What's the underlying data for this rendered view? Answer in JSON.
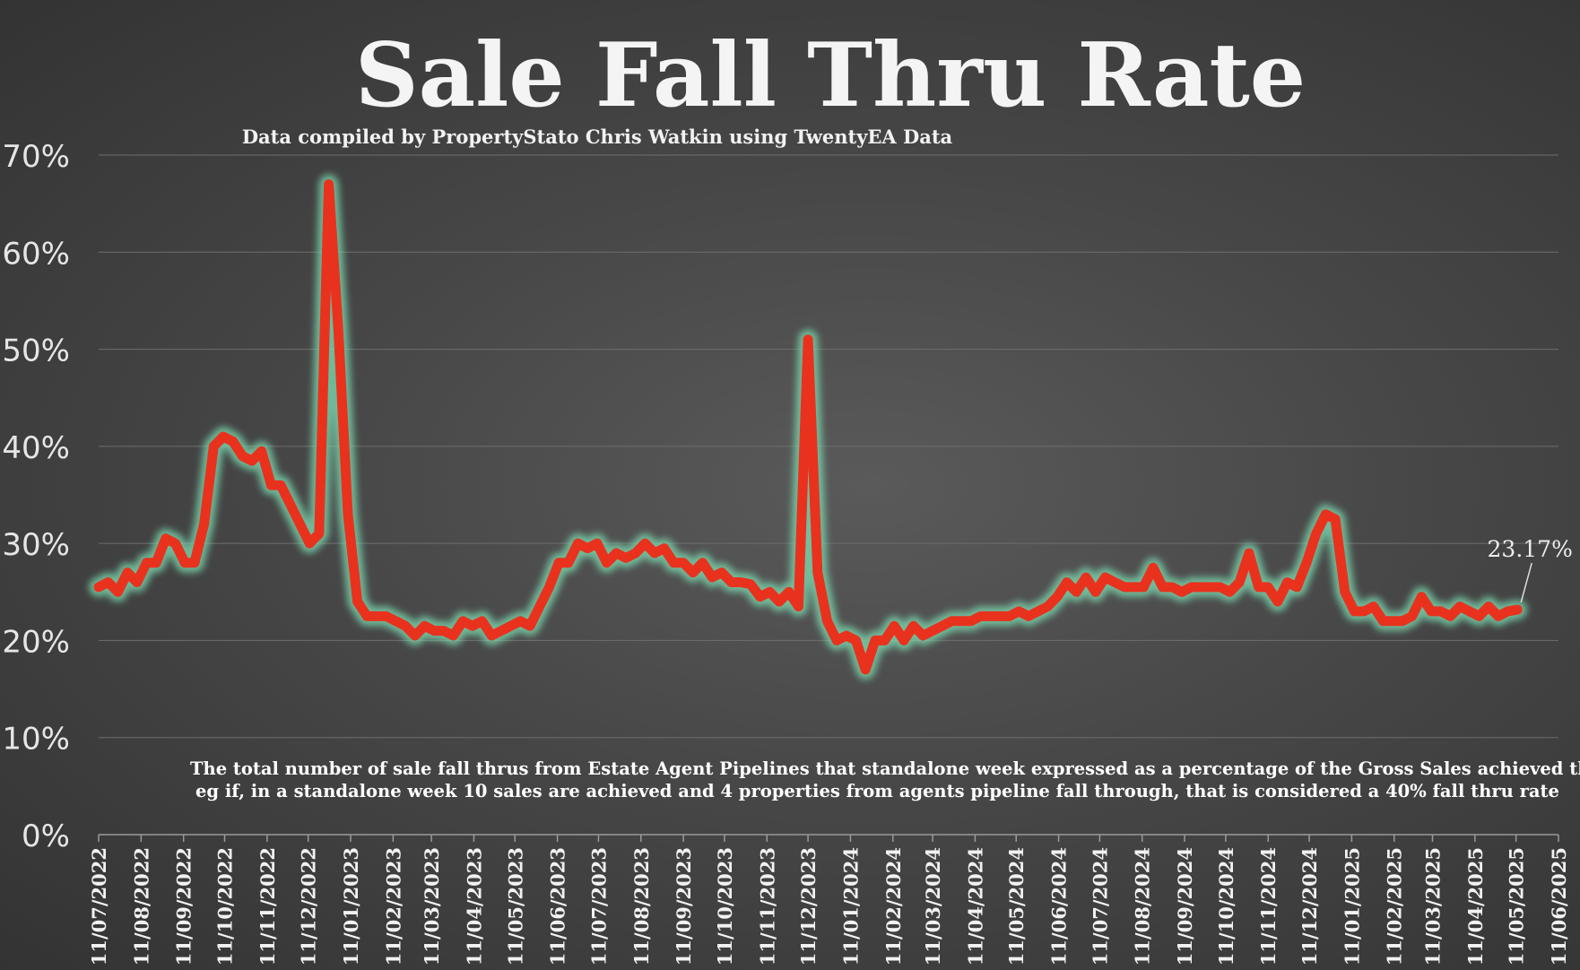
{
  "chart_data": {
    "type": "line",
    "title": "Sale Fall Thru Rate",
    "subtitle": "Data compiled by PropertyStato Chris Watkin using TwentyEA Data",
    "note_line1": "The total number of sale fall thrus from Estate Agent Pipelines that standalone week expressed as a percentage of the Gross Sales achieved that week.",
    "note_line2": "eg if, in a standalone week 10 sales are achieved and 4 properties from agents pipeline fall through, that is considered a 40%  fall thru rate",
    "xlabel": "",
    "ylabel": "",
    "y_unit": "%",
    "ylim": [
      0,
      70
    ],
    "y_ticks": [
      "0%",
      "10%",
      "20%",
      "30%",
      "40%",
      "50%",
      "60%",
      "70%"
    ],
    "y_tick_values": [
      0,
      10,
      20,
      30,
      40,
      50,
      60,
      70
    ],
    "x_range": [
      "2022-07-11",
      "2025-06-11"
    ],
    "x_ticks": [
      "11/07/2022",
      "11/08/2022",
      "11/09/2022",
      "11/10/2022",
      "11/11/2022",
      "11/12/2022",
      "11/01/2023",
      "11/02/2023",
      "11/03/2023",
      "11/04/2023",
      "11/05/2023",
      "11/06/2023",
      "11/07/2023",
      "11/08/2023",
      "11/09/2023",
      "11/10/2023",
      "11/11/2023",
      "11/12/2023",
      "11/01/2024",
      "11/02/2024",
      "11/03/2024",
      "11/04/2024",
      "11/05/2024",
      "11/06/2024",
      "11/07/2024",
      "11/08/2024",
      "11/09/2024",
      "11/10/2024",
      "11/11/2024",
      "11/12/2024",
      "11/01/2025",
      "11/02/2025",
      "11/03/2025",
      "11/04/2025",
      "11/05/2025",
      "11/06/2025"
    ],
    "grid": true,
    "legend": "none",
    "line_color": "#e8321e",
    "glow_color": "#7ee0b4",
    "last_value_label": "23.17%",
    "series": [
      {
        "x": [
          "2022-07-11",
          "2022-07-18",
          "2022-07-25",
          "2022-08-01",
          "2022-08-08",
          "2022-08-15",
          "2022-08-22",
          "2022-08-29",
          "2022-09-05",
          "2022-09-12",
          "2022-09-19",
          "2022-09-26",
          "2022-10-03",
          "2022-10-10",
          "2022-10-17",
          "2022-10-24",
          "2022-10-31",
          "2022-11-07",
          "2022-11-14",
          "2022-11-21",
          "2022-11-28",
          "2022-12-05",
          "2022-12-12",
          "2022-12-19",
          "2022-12-26",
          "2023-01-02",
          "2023-01-09",
          "2023-01-16",
          "2023-01-23",
          "2023-01-30",
          "2023-02-06",
          "2023-02-13",
          "2023-02-20",
          "2023-02-27",
          "2023-03-06",
          "2023-03-13",
          "2023-03-20",
          "2023-03-27",
          "2023-04-03",
          "2023-04-10",
          "2023-04-17",
          "2023-04-24",
          "2023-05-01",
          "2023-05-08",
          "2023-05-15",
          "2023-05-22",
          "2023-05-29",
          "2023-06-05",
          "2023-06-12",
          "2023-06-19",
          "2023-06-26",
          "2023-07-03",
          "2023-07-10",
          "2023-07-17",
          "2023-07-24",
          "2023-07-31",
          "2023-08-07",
          "2023-08-14",
          "2023-08-21",
          "2023-08-28",
          "2023-09-04",
          "2023-09-11",
          "2023-09-18",
          "2023-09-25",
          "2023-10-02",
          "2023-10-09",
          "2023-10-16",
          "2023-10-23",
          "2023-10-30",
          "2023-11-06",
          "2023-11-13",
          "2023-11-20",
          "2023-11-27",
          "2023-12-04",
          "2023-12-11",
          "2023-12-18",
          "2023-12-25",
          "2024-01-01",
          "2024-01-08",
          "2024-01-15",
          "2024-01-22",
          "2024-01-29",
          "2024-02-05",
          "2024-02-12",
          "2024-02-19",
          "2024-02-26",
          "2024-03-04",
          "2024-03-11",
          "2024-03-18",
          "2024-03-25",
          "2024-04-01",
          "2024-04-08",
          "2024-04-15",
          "2024-04-22",
          "2024-04-29",
          "2024-05-06",
          "2024-05-13",
          "2024-05-20",
          "2024-05-27",
          "2024-06-03",
          "2024-06-10",
          "2024-06-17",
          "2024-06-24",
          "2024-07-01",
          "2024-07-08",
          "2024-07-15",
          "2024-07-22",
          "2024-07-29",
          "2024-08-05",
          "2024-08-12",
          "2024-08-19",
          "2024-08-26",
          "2024-09-02",
          "2024-09-09",
          "2024-09-16",
          "2024-09-23",
          "2024-09-30",
          "2024-10-07",
          "2024-10-14",
          "2024-10-21",
          "2024-10-28",
          "2024-11-04",
          "2024-11-11",
          "2024-11-18",
          "2024-11-25",
          "2024-12-02",
          "2024-12-09",
          "2024-12-16",
          "2024-12-23",
          "2024-12-30",
          "2025-01-06",
          "2025-01-13",
          "2025-01-20",
          "2025-01-27",
          "2025-02-03",
          "2025-02-10",
          "2025-02-17",
          "2025-02-24",
          "2025-03-03",
          "2025-03-10",
          "2025-03-17",
          "2025-03-24",
          "2025-03-31",
          "2025-04-07",
          "2025-04-14",
          "2025-04-21",
          "2025-04-28",
          "2025-05-05",
          "2025-05-12"
        ],
        "values": [
          25.5,
          26,
          25,
          27,
          26,
          28,
          28,
          30.5,
          30,
          28,
          28,
          32,
          40,
          41,
          40.5,
          39,
          38.5,
          39.5,
          36,
          36,
          34,
          32,
          30,
          31,
          67,
          52,
          33,
          24,
          22.5,
          22.5,
          22.5,
          22,
          21.5,
          20.5,
          21.5,
          21,
          21,
          20.5,
          22,
          21.5,
          22,
          20.5,
          21,
          21.5,
          22,
          21.5,
          23.5,
          25.5,
          28,
          28,
          30,
          29.5,
          30,
          28,
          29,
          28.5,
          29,
          30,
          29,
          29.5,
          28,
          28,
          27,
          28,
          26.5,
          27,
          26,
          26,
          25.8,
          24.5,
          25,
          24,
          25,
          23.5,
          51,
          27,
          22,
          20,
          20.5,
          20,
          17,
          20,
          20,
          21.5,
          20,
          21.5,
          20.5,
          21,
          21.5,
          22,
          22,
          22,
          22.5,
          22.5,
          22.5,
          22.5,
          23,
          22.5,
          23,
          23.5,
          24.5,
          26,
          25,
          26.5,
          25,
          26.5,
          26,
          25.5,
          25.5,
          25.5,
          27.5,
          25.5,
          25.5,
          25,
          25.5,
          25.5,
          25.5,
          25.5,
          25,
          26,
          29,
          25.5,
          25.5,
          24,
          26,
          25.5,
          28,
          31,
          33,
          32.5,
          25,
          23,
          23,
          23.5,
          22,
          22,
          22,
          22.5,
          24.5,
          23,
          23,
          22.5,
          23.5,
          23,
          22.5,
          23.5,
          22.5,
          23,
          23.17
        ]
      }
    ]
  }
}
